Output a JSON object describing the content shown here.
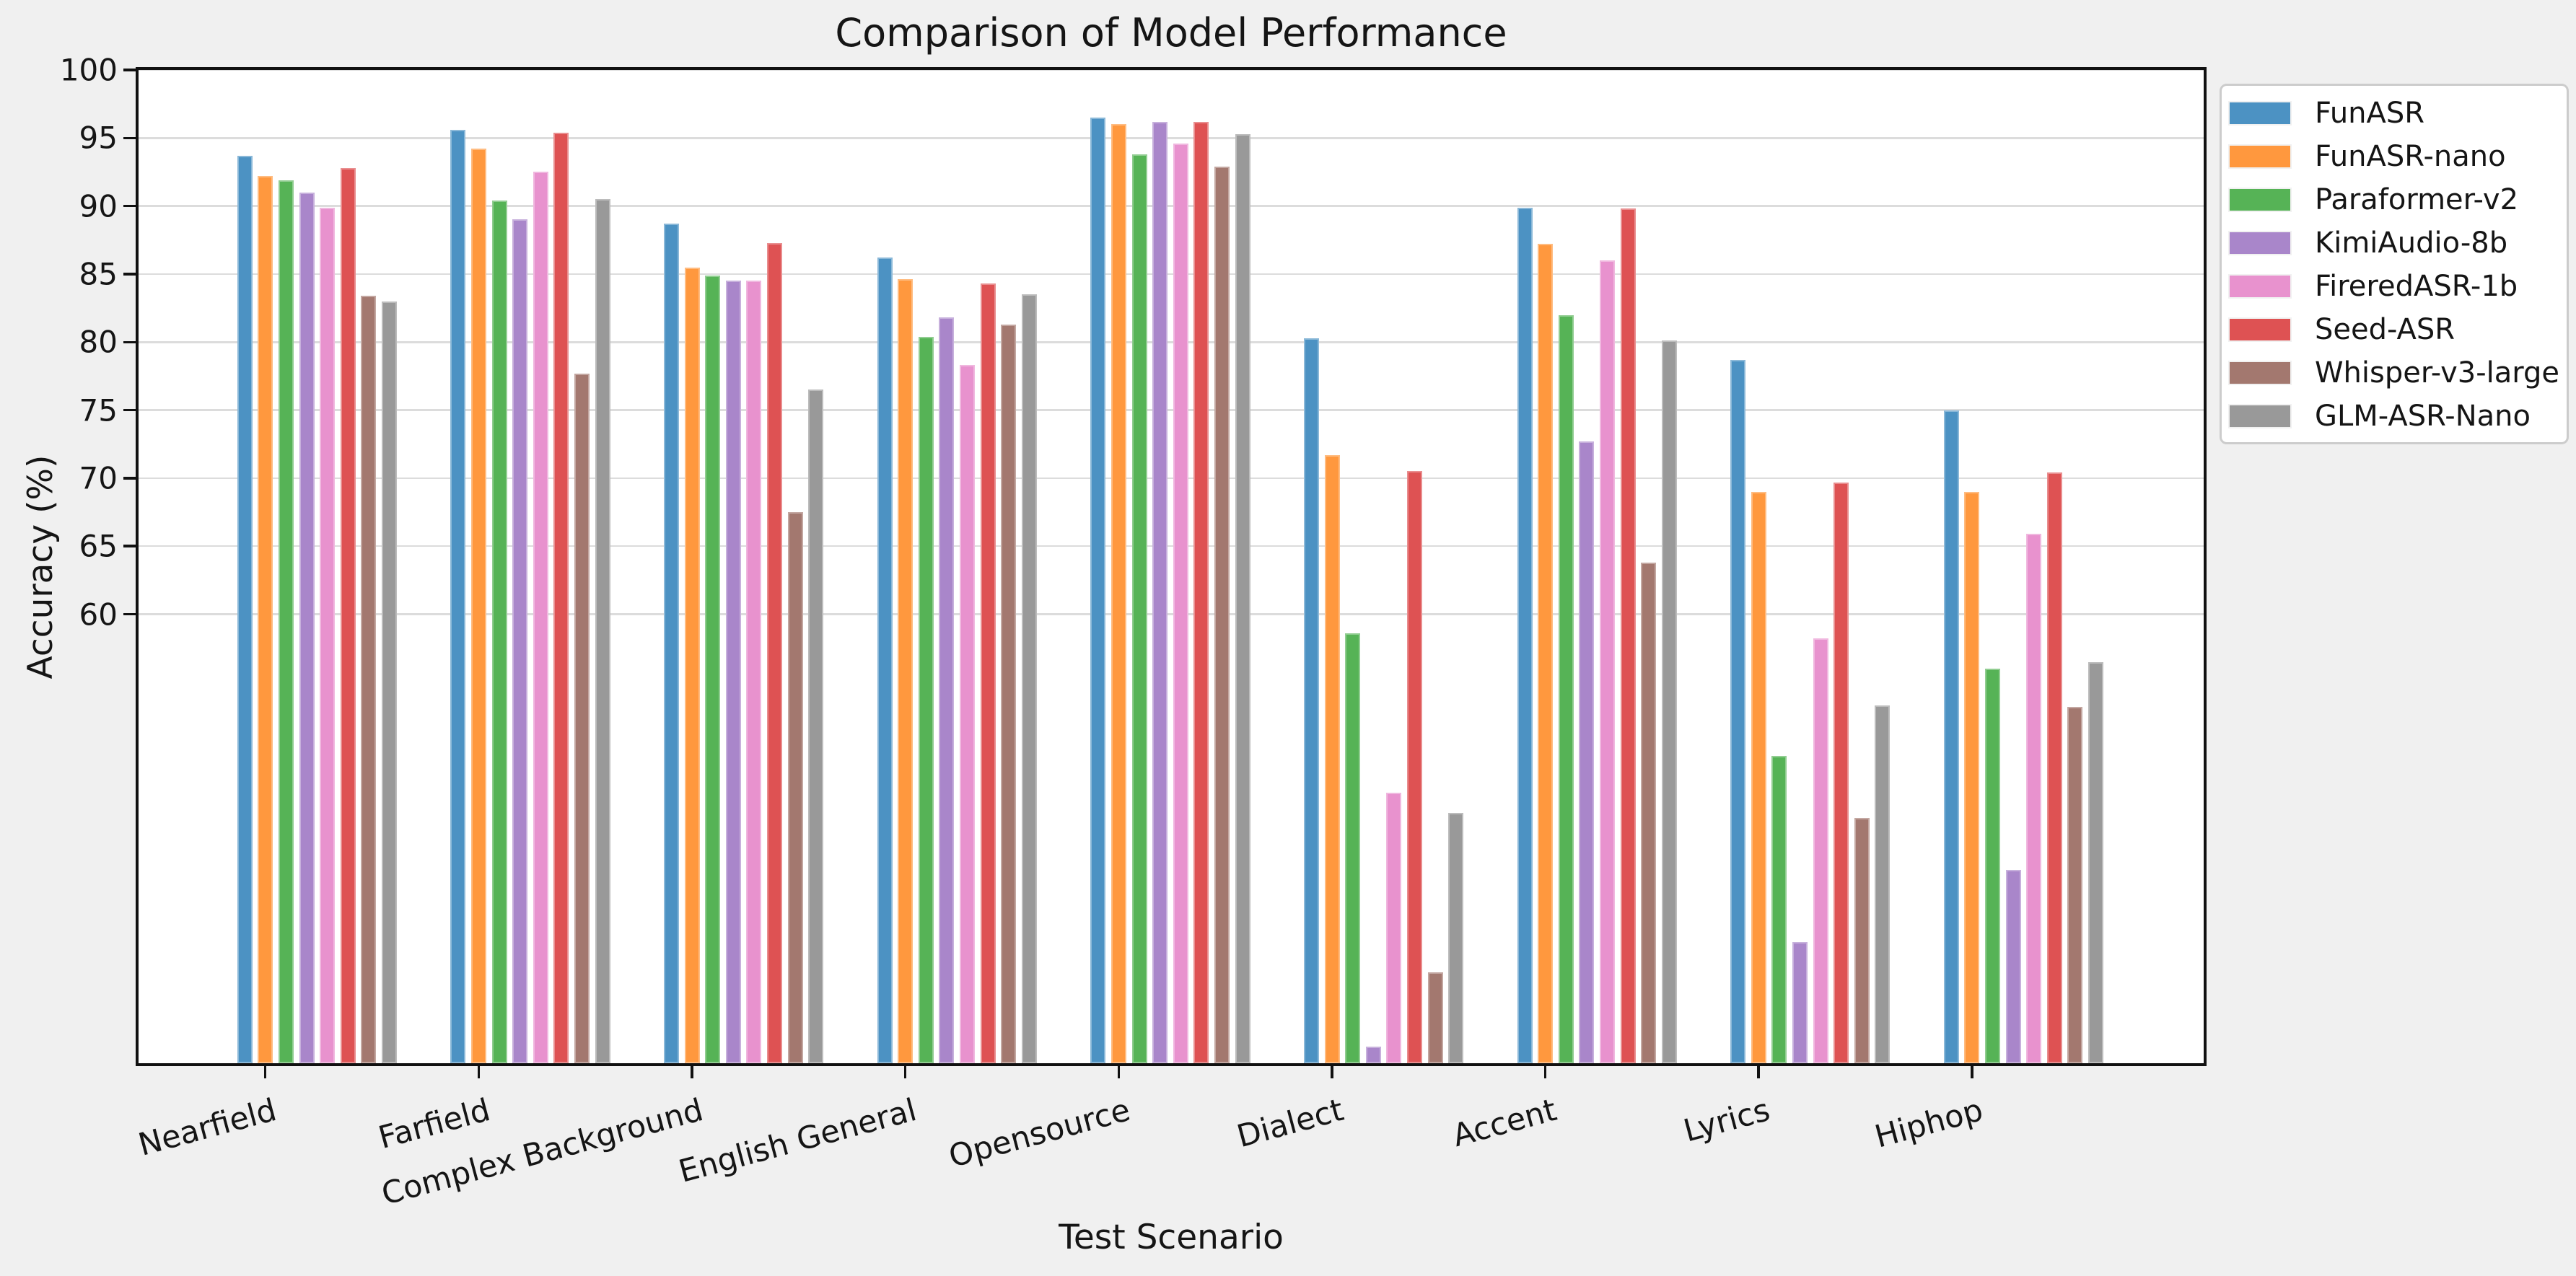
{
  "chart_data": {
    "type": "bar",
    "title": "Comparison of Model Performance",
    "xlabel": "Test Scenario",
    "ylabel": "Accuracy (%)",
    "categories": [
      "Nearfield",
      "Farfield",
      "Complex Background",
      "English General",
      "Opensource",
      "Dialect",
      "Accent",
      "Lyrics",
      "Hiphop"
    ],
    "series": [
      {
        "name": "FunASR",
        "color": "#4C92C3",
        "values": [
          93.7,
          95.6,
          88.7,
          86.2,
          96.5,
          80.3,
          89.9,
          78.7,
          75.0
        ]
      },
      {
        "name": "FunASR-nano",
        "color": "#FF983E",
        "values": [
          92.2,
          94.2,
          85.5,
          84.6,
          96.0,
          71.7,
          87.2,
          69.0,
          69.0
        ]
      },
      {
        "name": "Paraformer-v2",
        "color": "#56B356",
        "values": [
          91.9,
          90.4,
          84.9,
          80.4,
          93.8,
          58.6,
          82.0,
          49.6,
          56.0
        ]
      },
      {
        "name": "KimiAudio-8b",
        "color": "#A986CA",
        "values": [
          91.0,
          89.0,
          84.5,
          81.8,
          96.2,
          28.2,
          72.7,
          35.9,
          41.2
        ]
      },
      {
        "name": "FireredASR-1b",
        "color": "#E892CE",
        "values": [
          89.9,
          92.5,
          84.5,
          78.3,
          94.6,
          46.9,
          86.0,
          58.2,
          65.9
        ]
      },
      {
        "name": "Seed-ASR",
        "color": "#DE5253",
        "values": [
          92.8,
          95.4,
          87.3,
          84.3,
          96.2,
          70.5,
          89.8,
          69.7,
          70.4
        ]
      },
      {
        "name": "Whisper-v3-large",
        "color": "#A3786F",
        "values": [
          83.4,
          77.7,
          67.5,
          81.3,
          92.9,
          33.7,
          63.8,
          45.0,
          53.2
        ]
      },
      {
        "name": "GLM-ASR-Nano",
        "color": "#999999",
        "values": [
          83.0,
          90.5,
          76.5,
          83.5,
          95.3,
          45.4,
          80.1,
          53.3,
          56.5
        ]
      }
    ],
    "ylim": [
      27,
      100
    ],
    "yticks": [
      60,
      65,
      70,
      75,
      80,
      85,
      90,
      95,
      100
    ],
    "grid": true,
    "x_tick_rotation_deg": 15,
    "legend_position": "outside-upper-right"
  }
}
